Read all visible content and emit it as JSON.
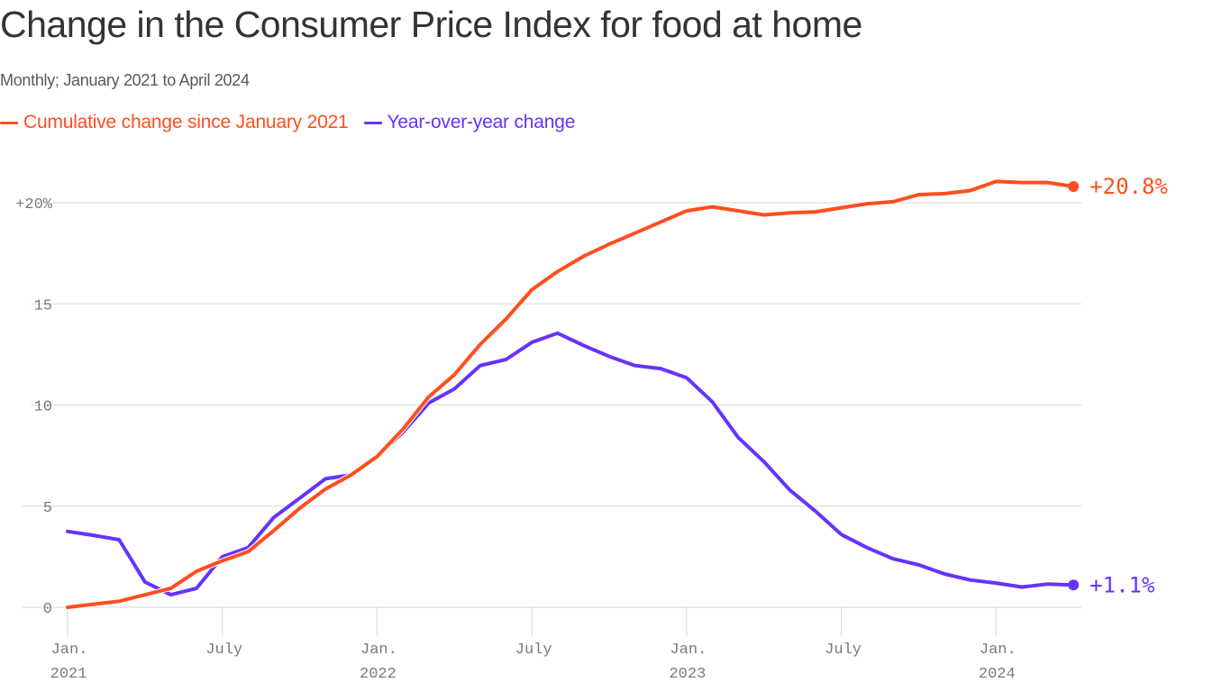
{
  "colors": {
    "cumulative": "#ff4e1f",
    "yoy": "#6533ff",
    "grid": "#e0e0e0",
    "axis_text": "#7a7a7a",
    "title": "#333333"
  },
  "chart_data": {
    "type": "line",
    "title": "Change in the Consumer Price Index for food at home",
    "subtitle": "Monthly; January 2021 to April 2024",
    "xlabel": "",
    "ylabel": "",
    "ylim": [
      -1.5,
      21.5
    ],
    "grid": true,
    "legend_position": "top-left",
    "y_ticks": [
      {
        "value": 0,
        "label": "0"
      },
      {
        "value": 5,
        "label": "5"
      },
      {
        "value": 10,
        "label": "10"
      },
      {
        "value": 15,
        "label": "15"
      },
      {
        "value": 20,
        "label": "+20%"
      }
    ],
    "x_ticks": [
      {
        "index": 0,
        "label": "Jan.",
        "year": "2021"
      },
      {
        "index": 6,
        "label": "July",
        "year": ""
      },
      {
        "index": 12,
        "label": "Jan.",
        "year": "2022"
      },
      {
        "index": 18,
        "label": "July",
        "year": ""
      },
      {
        "index": 24,
        "label": "Jan.",
        "year": "2023"
      },
      {
        "index": 30,
        "label": "July",
        "year": ""
      },
      {
        "index": 36,
        "label": "Jan.",
        "year": "2024"
      }
    ],
    "x": [
      "2021-01",
      "2021-02",
      "2021-03",
      "2021-04",
      "2021-05",
      "2021-06",
      "2021-07",
      "2021-08",
      "2021-09",
      "2021-10",
      "2021-11",
      "2021-12",
      "2022-01",
      "2022-02",
      "2022-03",
      "2022-04",
      "2022-05",
      "2022-06",
      "2022-07",
      "2022-08",
      "2022-09",
      "2022-10",
      "2022-11",
      "2022-12",
      "2023-01",
      "2023-02",
      "2023-03",
      "2023-04",
      "2023-05",
      "2023-06",
      "2023-07",
      "2023-08",
      "2023-09",
      "2023-10",
      "2023-11",
      "2023-12",
      "2024-01",
      "2024-02",
      "2024-03",
      "2024-04"
    ],
    "series": [
      {
        "name": "Cumulative change since January 2021",
        "color": "#ff4e1f",
        "end_label": "+20.8%",
        "values": [
          0,
          0.15,
          0.3,
          0.62,
          0.94,
          1.78,
          2.3,
          2.75,
          3.8,
          4.9,
          5.85,
          6.55,
          7.45,
          8.8,
          10.4,
          11.5,
          13.0,
          14.25,
          15.7,
          16.6,
          17.35,
          17.95,
          18.5,
          19.05,
          19.6,
          19.8,
          19.6,
          19.4,
          19.5,
          19.55,
          19.75,
          19.95,
          20.05,
          20.4,
          20.45,
          20.6,
          21.05,
          21.0,
          21.0,
          20.8
        ]
      },
      {
        "name": "Year-over-year change",
        "color": "#6533ff",
        "end_label": "+1.1%",
        "values": [
          3.75,
          3.56,
          3.34,
          1.25,
          0.62,
          0.94,
          2.5,
          2.95,
          4.45,
          5.4,
          6.35,
          6.55,
          7.45,
          8.65,
          10.1,
          10.8,
          11.95,
          12.25,
          13.1,
          13.55,
          12.95,
          12.4,
          11.95,
          11.8,
          11.35,
          10.15,
          8.4,
          7.2,
          5.8,
          4.75,
          3.6,
          2.95,
          2.4,
          2.1,
          1.65,
          1.35,
          1.2,
          1.0,
          1.15,
          1.1
        ]
      }
    ]
  }
}
